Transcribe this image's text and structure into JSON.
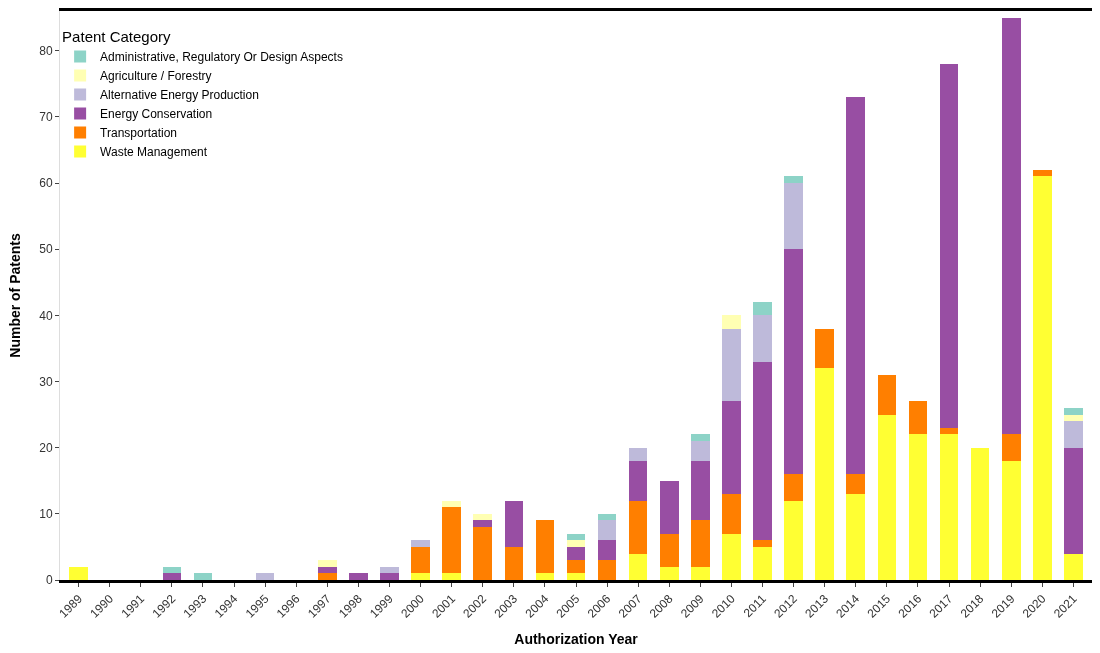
{
  "chart_data": {
    "type": "bar",
    "stacked": true,
    "xlabel": "Authorization Year",
    "ylabel": "Number of Patents",
    "legend_title": "Patent Category",
    "legend": "top left",
    "grid": false,
    "categories": [
      "1989",
      "1990",
      "1991",
      "1992",
      "1993",
      "1994",
      "1995",
      "1996",
      "1997",
      "1998",
      "1999",
      "2000",
      "2001",
      "2002",
      "2003",
      "2004",
      "2005",
      "2006",
      "2007",
      "2008",
      "2009",
      "2010",
      "2011",
      "2012",
      "2013",
      "2014",
      "2015",
      "2016",
      "2017",
      "2018",
      "2019",
      "2020",
      "2021"
    ],
    "ylim": [
      0,
      86
    ],
    "yticks": [
      0,
      10,
      20,
      30,
      40,
      50,
      60,
      70,
      80
    ],
    "series": [
      {
        "name": "Waste Management",
        "color": "#ffff33",
        "values": [
          2,
          0,
          0,
          0,
          0,
          0,
          0,
          0,
          0,
          0,
          0,
          1,
          1,
          0,
          0,
          1,
          1,
          0,
          4,
          2,
          2,
          7,
          5,
          12,
          32,
          13,
          25,
          22,
          22,
          20,
          18,
          61,
          4
        ]
      },
      {
        "name": "Transportation",
        "color": "#ff7f00",
        "values": [
          0,
          0,
          0,
          0,
          0,
          0,
          0,
          0,
          1,
          0,
          0,
          4,
          10,
          8,
          5,
          8,
          2,
          3,
          8,
          5,
          7,
          6,
          1,
          4,
          6,
          3,
          6,
          5,
          1,
          0,
          4,
          1,
          0
        ]
      },
      {
        "name": "Energy Conservation",
        "color": "#984ea3",
        "values": [
          0,
          0,
          0,
          1,
          0,
          0,
          0,
          0,
          1,
          1,
          1,
          0,
          0,
          1,
          7,
          0,
          2,
          3,
          6,
          8,
          9,
          14,
          27,
          34,
          0,
          57,
          0,
          0,
          55,
          0,
          63,
          0,
          16
        ]
      },
      {
        "name": "Alternative Energy Production",
        "color": "#bebada",
        "values": [
          0,
          0,
          0,
          0,
          0,
          0,
          1,
          0,
          0,
          0,
          1,
          1,
          0,
          0,
          0,
          0,
          0,
          3,
          2,
          0,
          3,
          11,
          7,
          10,
          0,
          0,
          0,
          0,
          0,
          0,
          0,
          0,
          4
        ]
      },
      {
        "name": "Agriculture / Forestry",
        "color": "#ffffb3",
        "values": [
          0,
          0,
          0,
          0,
          0,
          0,
          0,
          0,
          1,
          0,
          0,
          0,
          1,
          1,
          0,
          0,
          1,
          0,
          0,
          0,
          0,
          2,
          0,
          0,
          0,
          0,
          0,
          0,
          0,
          0,
          0,
          0,
          1
        ]
      },
      {
        "name": "Administrative, Regulatory Or Design Aspects",
        "color": "#8dd3c7",
        "values": [
          0,
          0,
          0,
          1,
          1,
          0,
          0,
          0,
          0,
          0,
          0,
          0,
          0,
          0,
          0,
          0,
          1,
          1,
          0,
          0,
          1,
          0,
          2,
          1,
          0,
          0,
          0,
          0,
          0,
          0,
          0,
          0,
          1
        ]
      }
    ]
  }
}
